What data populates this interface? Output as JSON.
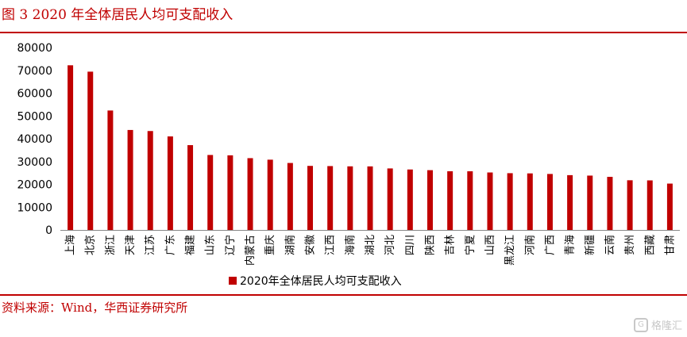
{
  "figure": {
    "title": "图 3 2020 年全体居民人均可支配收入",
    "source": "资料来源：Wind，华西证券研究所",
    "watermark": "格隆汇"
  },
  "colors": {
    "accent": "#c00000",
    "bar": "#c00000"
  },
  "chart_data": {
    "type": "bar",
    "categories": [
      "上海",
      "北京",
      "浙江",
      "天津",
      "江苏",
      "广东",
      "福建",
      "山东",
      "辽宁",
      "内蒙古",
      "重庆",
      "湖南",
      "安徽",
      "江西",
      "海南",
      "湖北",
      "河北",
      "四川",
      "陕西",
      "吉林",
      "宁夏",
      "山西",
      "黑龙江",
      "河南",
      "广西",
      "青海",
      "新疆",
      "云南",
      "贵州",
      "西藏",
      "甘肃"
    ],
    "series": [
      {
        "name": "2020年全体居民人均可支配收入",
        "values": [
          72232,
          69434,
          52397,
          43854,
          43390,
          41029,
          37202,
          32886,
          32738,
          31497,
          30824,
          29380,
          28103,
          28017,
          27904,
          27881,
          26985,
          26522,
          26226,
          25751,
          25735,
          25214,
          24902,
          24810,
          24562,
          24037,
          23845,
          23295,
          21795,
          21744,
          20335
        ]
      }
    ],
    "yticks": [
      "0",
      "10000",
      "20000",
      "30000",
      "40000",
      "50000",
      "60000",
      "70000",
      "80000"
    ],
    "ylim": [
      0,
      80000
    ],
    "grid": false,
    "legend_position": "bottom"
  }
}
